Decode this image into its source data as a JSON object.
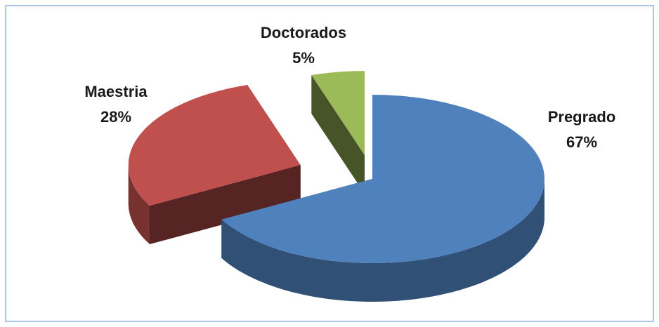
{
  "chart_data": {
    "type": "pie3d",
    "categories": [
      "Pregrado",
      "Maestria",
      "Doctorados"
    ],
    "values": [
      67,
      28,
      5
    ],
    "value_labels": [
      "67%",
      "28%",
      "5%"
    ],
    "colors": [
      "#4f81bd",
      "#c0504d",
      "#9bbb59"
    ]
  }
}
